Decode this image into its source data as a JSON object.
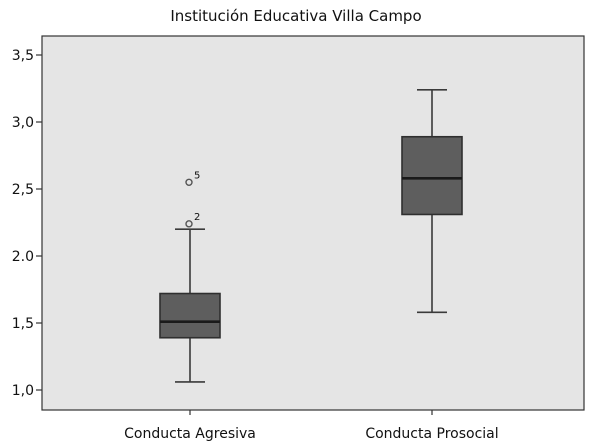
{
  "chart_data": {
    "type": "boxplot",
    "title": "Institución Educativa Villa Campo",
    "xlabel": "",
    "ylabel": "",
    "ylim": [
      0.95,
      3.62
    ],
    "yticks": [
      1.0,
      1.5,
      2.0,
      2.5,
      3.0,
      3.5
    ],
    "ytick_labels": [
      "1,0",
      "1,5",
      "2.0",
      "2,5",
      "3,0",
      "3,5"
    ],
    "grid": false,
    "legend": "none",
    "colors": {
      "plot_background": "#e5e5e5",
      "box_fill": "#5e5e5e",
      "box_edge": "#2f2f2f",
      "whisker": "#3a3a3a",
      "median": "#1a1a1a",
      "outlier": "#555555",
      "axis": "#333333"
    },
    "categories": [
      "Conducta Agresiva",
      "Conducta Prosocial"
    ],
    "boxes": [
      {
        "category": "Conducta Agresiva",
        "whisker_low": 1.06,
        "q1": 1.39,
        "median": 1.51,
        "q3": 1.72,
        "whisker_high": 2.2,
        "outliers": [
          {
            "value": 2.55,
            "label": "5"
          },
          {
            "value": 2.24,
            "label": "2"
          }
        ]
      },
      {
        "category": "Conducta Prosocial",
        "whisker_low": 1.58,
        "q1": 2.31,
        "median": 2.58,
        "q3": 2.89,
        "whisker_high": 3.24,
        "outliers": []
      }
    ]
  }
}
